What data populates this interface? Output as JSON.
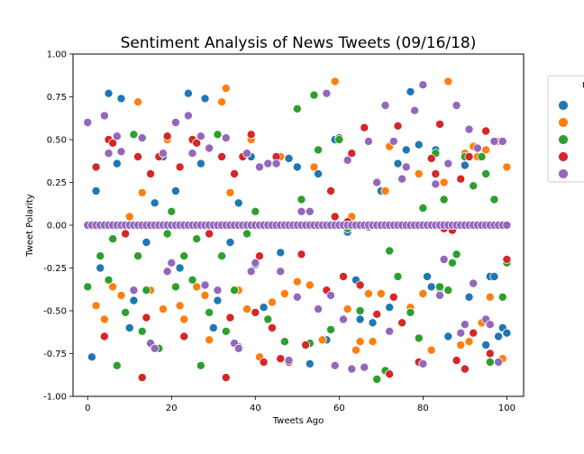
{
  "chart_data": {
    "type": "scatter",
    "title": "Sentiment Analysis of News Tweets (09/16/18)",
    "xlabel": "Tweets Ago",
    "ylabel": "Tweet Polarity",
    "xlim": [
      -3.5,
      104
    ],
    "ylim": [
      -1.0,
      1.0
    ],
    "xticks": [
      "0",
      "20",
      "40",
      "60",
      "80",
      "100"
    ],
    "yticks": [
      "-1.00",
      "-0.75",
      "-0.50",
      "-0.25",
      "0.00",
      "0.25",
      "0.50",
      "0.75",
      "1.00"
    ],
    "grid": false,
    "legend_position": "right-outside",
    "legend_title": "U",
    "series": [
      {
        "color": "#1f77b4",
        "points": [
          [
            1,
            -0.77
          ],
          [
            2,
            0.2
          ],
          [
            3,
            -0.25
          ],
          [
            5,
            0.77
          ],
          [
            7,
            0.36
          ],
          [
            8,
            0.74
          ],
          [
            9,
            0.0
          ],
          [
            10,
            -0.6
          ],
          [
            11,
            -0.44
          ],
          [
            12,
            0.72
          ],
          [
            14,
            -0.1
          ],
          [
            16,
            0.13
          ],
          [
            18,
            0.4
          ],
          [
            21,
            0.2
          ],
          [
            22,
            -0.25
          ],
          [
            24,
            0.77
          ],
          [
            26,
            0.0
          ],
          [
            27,
            0.36
          ],
          [
            28,
            0.74
          ],
          [
            30,
            -0.6
          ],
          [
            31,
            -0.44
          ],
          [
            32,
            0.72
          ],
          [
            34,
            -0.1
          ],
          [
            36,
            0.13
          ],
          [
            39,
            0.4
          ],
          [
            40,
            -0.23
          ],
          [
            42,
            -0.48
          ],
          [
            46,
            -0.16
          ],
          [
            48,
            0.39
          ],
          [
            50,
            0.34
          ],
          [
            53,
            -0.81
          ],
          [
            55,
            0.3
          ],
          [
            57,
            -0.67
          ],
          [
            59,
            0.5
          ],
          [
            60,
            0.51
          ],
          [
            62,
            -0.04
          ],
          [
            64,
            -0.32
          ],
          [
            65,
            -0.55
          ],
          [
            68,
            -0.57
          ],
          [
            70,
            0.2
          ],
          [
            72,
            -0.48
          ],
          [
            74,
            0.36
          ],
          [
            76,
            0.44
          ],
          [
            77,
            0.78
          ],
          [
            79,
            0.47
          ],
          [
            81,
            -0.3
          ],
          [
            82,
            -0.36
          ],
          [
            83,
            0.44
          ],
          [
            84,
            -0.37
          ],
          [
            86,
            -0.65
          ],
          [
            88,
            0.0
          ],
          [
            90,
            0.35
          ],
          [
            91,
            -0.42
          ],
          [
            93,
            0.4
          ],
          [
            95,
            -0.7
          ],
          [
            96,
            -0.3
          ],
          [
            97,
            -0.3
          ],
          [
            98,
            -0.65
          ],
          [
            99,
            -0.6
          ],
          [
            100,
            -0.63
          ]
        ]
      },
      {
        "color": "#ff7f0e",
        "points": [
          [
            2,
            -0.47
          ],
          [
            4,
            -0.55
          ],
          [
            6,
            -0.36
          ],
          [
            8,
            -0.41
          ],
          [
            10,
            0.05
          ],
          [
            12,
            0.72
          ],
          [
            13,
            0.19
          ],
          [
            15,
            -0.38
          ],
          [
            18,
            -0.49
          ],
          [
            19,
            0.5
          ],
          [
            22,
            -0.47
          ],
          [
            23,
            -0.55
          ],
          [
            26,
            -0.36
          ],
          [
            28,
            -0.41
          ],
          [
            29,
            -0.67
          ],
          [
            32,
            0.72
          ],
          [
            33,
            0.8
          ],
          [
            34,
            0.19
          ],
          [
            36,
            -0.38
          ],
          [
            38,
            -0.49
          ],
          [
            39,
            0.5
          ],
          [
            41,
            -0.77
          ],
          [
            44,
            -0.45
          ],
          [
            46,
            0.4
          ],
          [
            47,
            -0.4
          ],
          [
            50,
            -0.33
          ],
          [
            53,
            -0.35
          ],
          [
            54,
            0.34
          ],
          [
            56,
            -0.67
          ],
          [
            59,
            0.84
          ],
          [
            62,
            -0.49
          ],
          [
            63,
            0.05
          ],
          [
            64,
            -0.73
          ],
          [
            65,
            -0.68
          ],
          [
            67,
            -0.4
          ],
          [
            68,
            -0.68
          ],
          [
            70,
            -0.4
          ],
          [
            71,
            0.2
          ],
          [
            72,
            0.46
          ],
          [
            77,
            -0.48
          ],
          [
            79,
            0.3
          ],
          [
            80,
            -0.4
          ],
          [
            82,
            -0.73
          ],
          [
            85,
            0.25
          ],
          [
            86,
            0.84
          ],
          [
            89,
            -0.7
          ],
          [
            90,
            0.42
          ],
          [
            91,
            -0.68
          ],
          [
            92,
            0.46
          ],
          [
            93,
            0.4
          ],
          [
            94,
            -0.57
          ],
          [
            95,
            0.44
          ],
          [
            96,
            -0.42
          ],
          [
            98,
            0.49
          ],
          [
            99,
            -0.78
          ],
          [
            100,
            0.34
          ]
        ]
      },
      {
        "color": "#2ca02c",
        "points": [
          [
            0,
            -0.36
          ],
          [
            3,
            -0.18
          ],
          [
            5,
            -0.32
          ],
          [
            6,
            -0.08
          ],
          [
            7,
            -0.82
          ],
          [
            9,
            -0.51
          ],
          [
            11,
            0.53
          ],
          [
            12,
            -0.18
          ],
          [
            13,
            -0.62
          ],
          [
            14,
            -0.38
          ],
          [
            17,
            -0.72
          ],
          [
            19,
            -0.05
          ],
          [
            20,
            0.08
          ],
          [
            21,
            -0.36
          ],
          [
            23,
            -0.18
          ],
          [
            25,
            -0.32
          ],
          [
            26,
            -0.08
          ],
          [
            27,
            -0.82
          ],
          [
            29,
            -0.51
          ],
          [
            31,
            0.53
          ],
          [
            32,
            -0.18
          ],
          [
            33,
            -0.62
          ],
          [
            35,
            -0.38
          ],
          [
            36,
            -0.71
          ],
          [
            38,
            -0.05
          ],
          [
            40,
            0.08
          ],
          [
            43,
            -0.55
          ],
          [
            47,
            -0.68
          ],
          [
            50,
            0.68
          ],
          [
            51,
            0.15
          ],
          [
            53,
            -0.69
          ],
          [
            54,
            0.76
          ],
          [
            55,
            0.44
          ],
          [
            58,
            -0.61
          ],
          [
            60,
            0.5
          ],
          [
            62,
            -0.02
          ],
          [
            65,
            -0.5
          ],
          [
            67,
            -0.01
          ],
          [
            69,
            -0.9
          ],
          [
            71,
            -0.85
          ],
          [
            72,
            -0.15
          ],
          [
            74,
            -0.3
          ],
          [
            77,
            -0.51
          ],
          [
            79,
            -0.66
          ],
          [
            80,
            0.1
          ],
          [
            83,
            0.42
          ],
          [
            84,
            -0.36
          ],
          [
            85,
            0.15
          ],
          [
            86,
            -0.38
          ],
          [
            87,
            -0.22
          ],
          [
            88,
            -0.17
          ],
          [
            90,
            0.4
          ],
          [
            92,
            0.23
          ],
          [
            94,
            0.4
          ],
          [
            95,
            0.3
          ],
          [
            96,
            -0.8
          ],
          [
            97,
            0.15
          ],
          [
            99,
            -0.42
          ],
          [
            100,
            -0.22
          ]
        ]
      },
      {
        "color": "#d62728",
        "points": [
          [
            2,
            0.34
          ],
          [
            4,
            -0.65
          ],
          [
            5,
            0.5
          ],
          [
            6,
            0.48
          ],
          [
            9,
            -0.05
          ],
          [
            12,
            0.4
          ],
          [
            13,
            -0.89
          ],
          [
            14,
            -0.54
          ],
          [
            15,
            0.3
          ],
          [
            17,
            0.4
          ],
          [
            19,
            0.52
          ],
          [
            22,
            0.34
          ],
          [
            23,
            -0.65
          ],
          [
            25,
            0.5
          ],
          [
            26,
            0.48
          ],
          [
            29,
            -0.05
          ],
          [
            32,
            0.4
          ],
          [
            33,
            -0.89
          ],
          [
            34,
            -0.54
          ],
          [
            35,
            0.3
          ],
          [
            37,
            0.4
          ],
          [
            39,
            0.53
          ],
          [
            40,
            -0.51
          ],
          [
            41,
            -0.18
          ],
          [
            42,
            -0.8
          ],
          [
            44,
            -0.6
          ],
          [
            45,
            0.4
          ],
          [
            46,
            -0.78
          ],
          [
            48,
            -0.8
          ],
          [
            51,
            -0.17
          ],
          [
            52,
            -0.7
          ],
          [
            57,
            -0.38
          ],
          [
            58,
            0.2
          ],
          [
            59,
            0.05
          ],
          [
            61,
            -0.3
          ],
          [
            62,
            0.02
          ],
          [
            63,
            0.42
          ],
          [
            65,
            -0.35
          ],
          [
            66,
            0.57
          ],
          [
            69,
            -0.52
          ],
          [
            70,
            0.0
          ],
          [
            72,
            -0.87
          ],
          [
            73,
            -0.42
          ],
          [
            74,
            0.58
          ],
          [
            75,
            -0.57
          ],
          [
            79,
            -0.8
          ],
          [
            82,
            0.39
          ],
          [
            83,
            0.3
          ],
          [
            84,
            0.59
          ],
          [
            85,
            -0.02
          ],
          [
            87,
            -0.03
          ],
          [
            88,
            -0.79
          ],
          [
            89,
            0.27
          ],
          [
            90,
            -0.84
          ],
          [
            91,
            0.4
          ],
          [
            92,
            -0.63
          ],
          [
            95,
            0.55
          ],
          [
            96,
            -0.75
          ],
          [
            98,
            0.0
          ],
          [
            100,
            -0.2
          ]
        ]
      },
      {
        "color": "#9467bd",
        "points": [
          [
            0,
            0.6
          ],
          [
            4,
            0.64
          ],
          [
            5,
            0.42
          ],
          [
            7,
            0.52
          ],
          [
            8,
            0.43
          ],
          [
            11,
            -0.38
          ],
          [
            13,
            0.51
          ],
          [
            15,
            -0.69
          ],
          [
            16,
            -0.72
          ],
          [
            18,
            0.42
          ],
          [
            19,
            -0.27
          ],
          [
            20,
            -0.22
          ],
          [
            21,
            0.6
          ],
          [
            24,
            0.64
          ],
          [
            25,
            0.42
          ],
          [
            27,
            0.52
          ],
          [
            28,
            -0.35
          ],
          [
            29,
            0.45
          ],
          [
            31,
            -0.38
          ],
          [
            33,
            0.51
          ],
          [
            35,
            -0.69
          ],
          [
            36,
            -0.72
          ],
          [
            38,
            0.42
          ],
          [
            39,
            -0.27
          ],
          [
            40,
            -0.22
          ],
          [
            41,
            0.34
          ],
          [
            43,
            0.36
          ],
          [
            45,
            0.36
          ],
          [
            46,
            -0.27
          ],
          [
            48,
            -0.79
          ],
          [
            50,
            -0.42
          ],
          [
            51,
            0.08
          ],
          [
            53,
            0.08
          ],
          [
            55,
            -0.49
          ],
          [
            57,
            0.77
          ],
          [
            58,
            -0.41
          ],
          [
            59,
            -0.82
          ],
          [
            61,
            -0.55
          ],
          [
            62,
            0.38
          ],
          [
            63,
            -0.84
          ],
          [
            66,
            -0.83
          ],
          [
            67,
            0.49
          ],
          [
            69,
            0.25
          ],
          [
            71,
            0.7
          ],
          [
            72,
            -0.62
          ],
          [
            73,
            0.49
          ],
          [
            75,
            0.27
          ],
          [
            76,
            0.34
          ],
          [
            78,
            0.67
          ],
          [
            80,
            0.82
          ],
          [
            80,
            -0.81
          ],
          [
            83,
            0.24
          ],
          [
            84,
            -0.41
          ],
          [
            85,
            -0.2
          ],
          [
            86,
            0.36
          ],
          [
            88,
            0.7
          ],
          [
            89,
            -0.63
          ],
          [
            90,
            -0.58
          ],
          [
            91,
            0.56
          ],
          [
            92,
            -0.34
          ],
          [
            93,
            0.45
          ],
          [
            95,
            -0.55
          ],
          [
            96,
            -0.58
          ],
          [
            97,
            0.49
          ],
          [
            98,
            -0.8
          ],
          [
            99,
            0.49
          ],
          [
            100,
            0.0
          ]
        ]
      }
    ],
    "zero_points": {
      "x": [
        0,
        1,
        2,
        3,
        4,
        5,
        6,
        7,
        8,
        9,
        10,
        11,
        12,
        13,
        14,
        15,
        16,
        17,
        18,
        19,
        20,
        21,
        22,
        23,
        24,
        25,
        26,
        27,
        28,
        29,
        30,
        31,
        32,
        33,
        34,
        35,
        36,
        37,
        38,
        39,
        40,
        41,
        42,
        43,
        44,
        45,
        46,
        47,
        48,
        49,
        50,
        51,
        52,
        53,
        54,
        55,
        56,
        57,
        58,
        59,
        60,
        61,
        62,
        63,
        64,
        65,
        66,
        67,
        68,
        69,
        70,
        71,
        72,
        73,
        74,
        75,
        76,
        77,
        78,
        79,
        80,
        81,
        82,
        83,
        84,
        85,
        86,
        87,
        88,
        89,
        90,
        91,
        92,
        93,
        94,
        95,
        96,
        97,
        98,
        99,
        100
      ],
      "y": 0.0
    }
  }
}
